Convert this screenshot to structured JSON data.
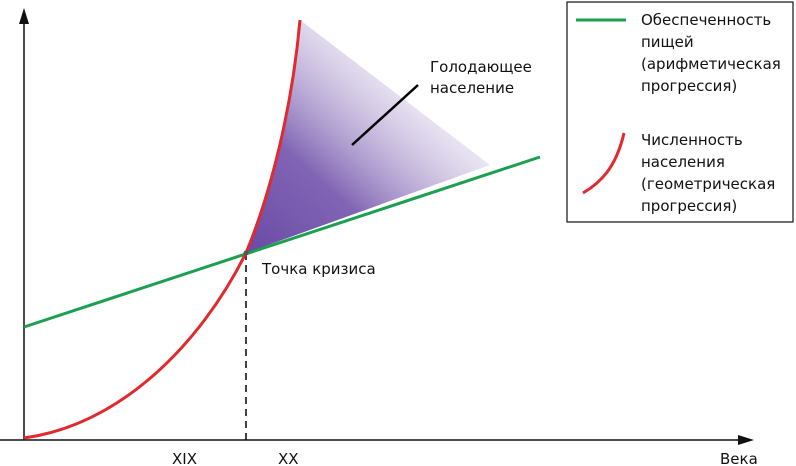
{
  "diagram": {
    "axis": {
      "x_label": "Века",
      "x_ticks": [
        "XIX",
        "XX"
      ]
    },
    "annotations": {
      "hungry": [
        "Голодающее",
        "население"
      ],
      "crisis_point": "Точка кризиса"
    },
    "legend": {
      "items": [
        {
          "name": "food",
          "lines": [
            "Обеспеченность",
            "пищей",
            "(арифметическая",
            "прогрессия)"
          ],
          "color": "#1aa050"
        },
        {
          "name": "population",
          "lines": [
            "Численность",
            "населения",
            "(геометрическая",
            "прогрессия)"
          ],
          "color": "#e02a2e"
        }
      ]
    },
    "colors": {
      "food_line": "#1aa050",
      "population_curve": "#e02a2e",
      "hunger_fill": "#7050a8",
      "axis": "#111111"
    }
  }
}
